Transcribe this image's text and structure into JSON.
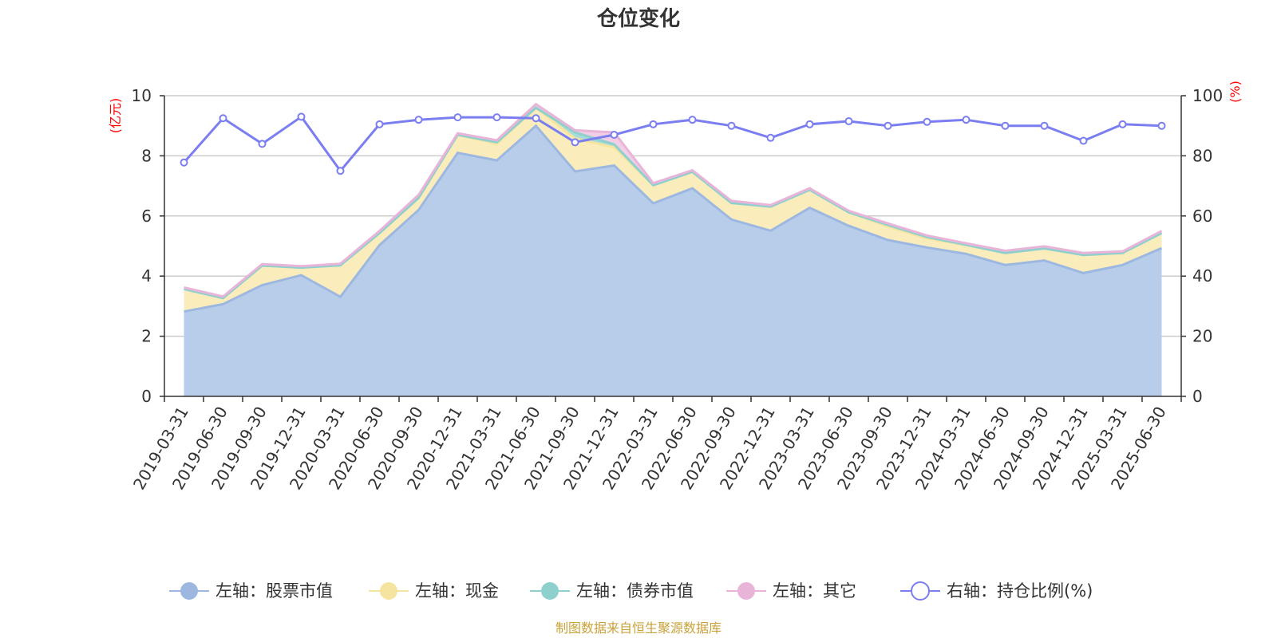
{
  "chart_data": {
    "type": "area",
    "title": "仓位变化",
    "left_axis_unit": "(亿元)",
    "right_axis_unit": "(%)",
    "ylim_left": [
      0,
      10
    ],
    "yticks_left": [
      "0",
      "2",
      "4",
      "6",
      "8",
      "10"
    ],
    "ylim_right": [
      0,
      100
    ],
    "yticks_right": [
      "0",
      "20",
      "40",
      "60",
      "80",
      "100"
    ],
    "grid": true,
    "legend_position": "bottom",
    "categories": [
      "2019-03-31",
      "2019-06-30",
      "2019-09-30",
      "2019-12-31",
      "2020-03-31",
      "2020-06-30",
      "2020-09-30",
      "2020-12-31",
      "2021-03-31",
      "2021-06-30",
      "2021-09-30",
      "2021-12-31",
      "2022-03-31",
      "2022-06-30",
      "2022-09-30",
      "2022-12-31",
      "2023-03-31",
      "2023-06-30",
      "2023-09-30",
      "2023-12-31",
      "2024-03-31",
      "2024-06-30",
      "2024-09-30",
      "2024-12-31",
      "2025-03-31",
      "2025-06-30"
    ],
    "series": [
      {
        "name": "左轴：股票市值",
        "axis": "left",
        "stack": true,
        "color": "#9db8e0",
        "fill": "#b8cdea",
        "values": [
          2.82,
          3.07,
          3.7,
          4.03,
          3.31,
          5.03,
          6.2,
          8.1,
          7.85,
          9.0,
          7.48,
          7.68,
          6.42,
          6.92,
          5.88,
          5.51,
          6.27,
          5.67,
          5.2,
          4.95,
          4.74,
          4.37,
          4.52,
          4.1,
          4.37,
          4.93
        ]
      },
      {
        "name": "左轴：现金",
        "axis": "left",
        "stack": true,
        "color": "#f5e4a0",
        "fill": "#faecbb",
        "values": [
          0.75,
          0.2,
          0.65,
          0.25,
          1.05,
          0.4,
          0.4,
          0.6,
          0.55,
          0.6,
          1.1,
          0.6,
          0.6,
          0.55,
          0.55,
          0.8,
          0.6,
          0.45,
          0.45,
          0.3,
          0.3,
          0.4,
          0.4,
          0.6,
          0.4,
          0.5
        ]
      },
      {
        "name": "左轴：债券市值",
        "axis": "left",
        "stack": true,
        "color": "#8ed0ce",
        "fill": "#a8dcd8",
        "values": [
          0,
          0,
          0,
          0,
          0,
          0,
          0,
          0,
          0.05,
          0,
          0.2,
          0.1,
          0,
          0,
          0,
          0,
          0,
          0,
          0.05,
          0.05,
          0,
          0,
          0,
          0,
          0,
          0
        ]
      },
      {
        "name": "左轴：其它",
        "axis": "left",
        "stack": true,
        "color": "#e8b4d8",
        "fill": "#f1cde6",
        "values": [
          0.05,
          0.05,
          0.05,
          0.05,
          0.05,
          0.07,
          0.1,
          0.05,
          0.07,
          0.12,
          0.07,
          0.4,
          0.07,
          0.05,
          0.07,
          0.05,
          0.05,
          0.05,
          0.05,
          0.05,
          0.05,
          0.07,
          0.07,
          0.07,
          0.05,
          0.07
        ]
      },
      {
        "name": "右轴：持仓比例(%)",
        "axis": "right",
        "stack": false,
        "color": "#7a7ef0",
        "values": [
          77.8,
          92.5,
          84.0,
          93.0,
          75.0,
          90.5,
          92.0,
          92.8,
          92.8,
          92.5,
          84.5,
          87.0,
          90.5,
          92.0,
          90.0,
          86.0,
          90.5,
          91.5,
          90.0,
          91.3,
          92.0,
          90.0,
          90.0,
          85.0,
          90.5,
          90.0
        ]
      }
    ]
  },
  "source_text": "制图数据来自恒生聚源数据库"
}
